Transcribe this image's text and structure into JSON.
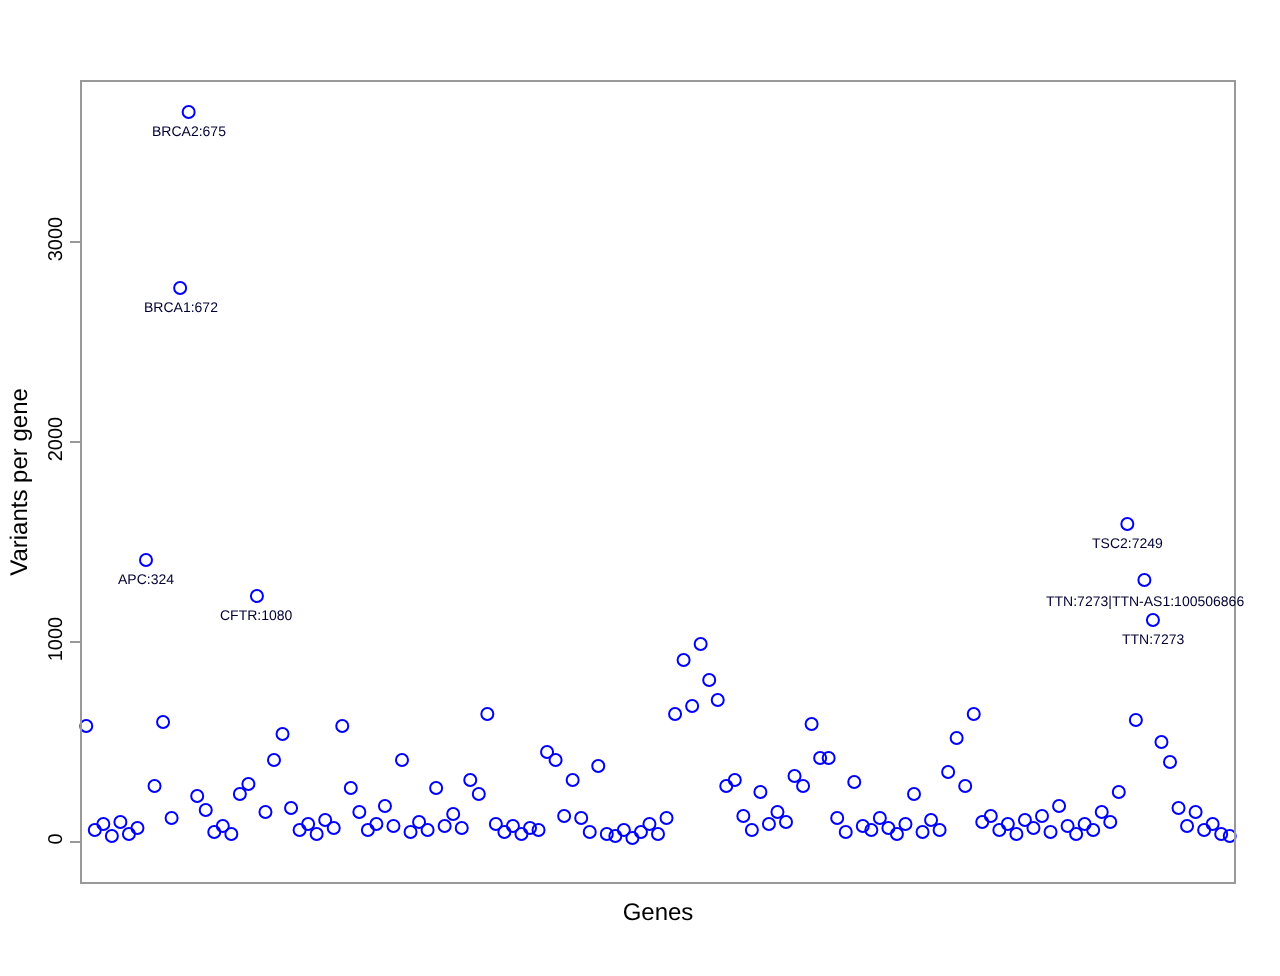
{
  "chart_data": {
    "type": "scatter",
    "xlabel": "Genes",
    "ylabel": "Variants per gene",
    "categories": [
      null,
      null,
      null,
      null,
      null,
      null,
      null,
      null,
      null,
      null,
      null,
      null,
      null,
      null,
      null,
      null,
      null,
      null,
      null,
      null,
      null,
      null,
      null,
      null,
      null,
      null,
      null,
      null,
      null,
      null,
      null,
      null,
      null,
      null,
      null,
      null,
      null,
      null,
      null,
      null,
      null,
      null,
      null,
      null,
      null,
      null,
      null,
      null,
      null,
      null,
      null,
      null,
      null,
      null,
      null,
      null,
      null,
      null,
      null,
      null,
      null,
      null,
      null,
      null,
      null,
      null,
      null,
      null,
      null,
      null,
      null,
      null,
      null,
      null,
      null,
      null,
      null,
      null,
      null,
      null,
      null,
      null,
      null,
      null,
      null,
      null,
      null,
      null,
      null,
      null,
      null,
      null,
      null,
      null,
      null,
      null,
      null,
      null,
      null,
      null,
      null,
      null,
      null,
      null,
      null,
      null,
      null,
      null,
      null,
      null,
      null,
      null,
      null,
      null,
      null,
      null,
      null,
      null,
      null,
      null,
      null,
      null,
      null,
      null,
      null,
      null,
      null,
      null,
      null,
      null,
      null,
      null,
      null,
      null,
      null
    ],
    "values": [
      580,
      60,
      90,
      30,
      100,
      40,
      70,
      1410,
      280,
      600,
      120,
      2770,
      3650,
      230,
      160,
      50,
      80,
      40,
      240,
      290,
      1230,
      150,
      410,
      540,
      170,
      60,
      90,
      40,
      110,
      70,
      580,
      270,
      150,
      60,
      90,
      180,
      80,
      410,
      50,
      100,
      60,
      270,
      80,
      140,
      70,
      310,
      240,
      640,
      90,
      50,
      80,
      40,
      70,
      60,
      450,
      410,
      130,
      310,
      120,
      50,
      380,
      40,
      30,
      60,
      20,
      50,
      90,
      40,
      120,
      640,
      910,
      680,
      990,
      810,
      710,
      280,
      310,
      130,
      60,
      250,
      90,
      150,
      100,
      330,
      280,
      590,
      420,
      420,
      120,
      50,
      300,
      80,
      60,
      120,
      70,
      40,
      90,
      240,
      50,
      110,
      60,
      350,
      520,
      280,
      640,
      100,
      130,
      60,
      90,
      40,
      110,
      70,
      130,
      50,
      180,
      80,
      40,
      90,
      60,
      150,
      100,
      250,
      1590,
      610,
      1310,
      1110,
      500,
      400,
      170,
      80,
      150,
      60,
      90,
      40,
      30
    ],
    "color": "#0000ff",
    "marker": "circle",
    "ylim": [
      -200,
      3800
    ],
    "yticks": [
      0,
      1000,
      2000,
      3000
    ],
    "grid": false,
    "tick_labels": "y",
    "annotations": [
      {
        "text": "BRCA2:675",
        "y": 3650
      },
      {
        "text": "BRCA1:672",
        "y": 2770
      },
      {
        "text": "APC:324",
        "y": 1410
      },
      {
        "text": "CFTR:1080",
        "y": 1230
      },
      {
        "text": "TSC2:7249",
        "y": 1590
      },
      {
        "text": "TTN:7273|TTN-AS1:100506866",
        "y": 1310
      },
      {
        "text": "TTN:7273",
        "y": 1110
      }
    ]
  }
}
